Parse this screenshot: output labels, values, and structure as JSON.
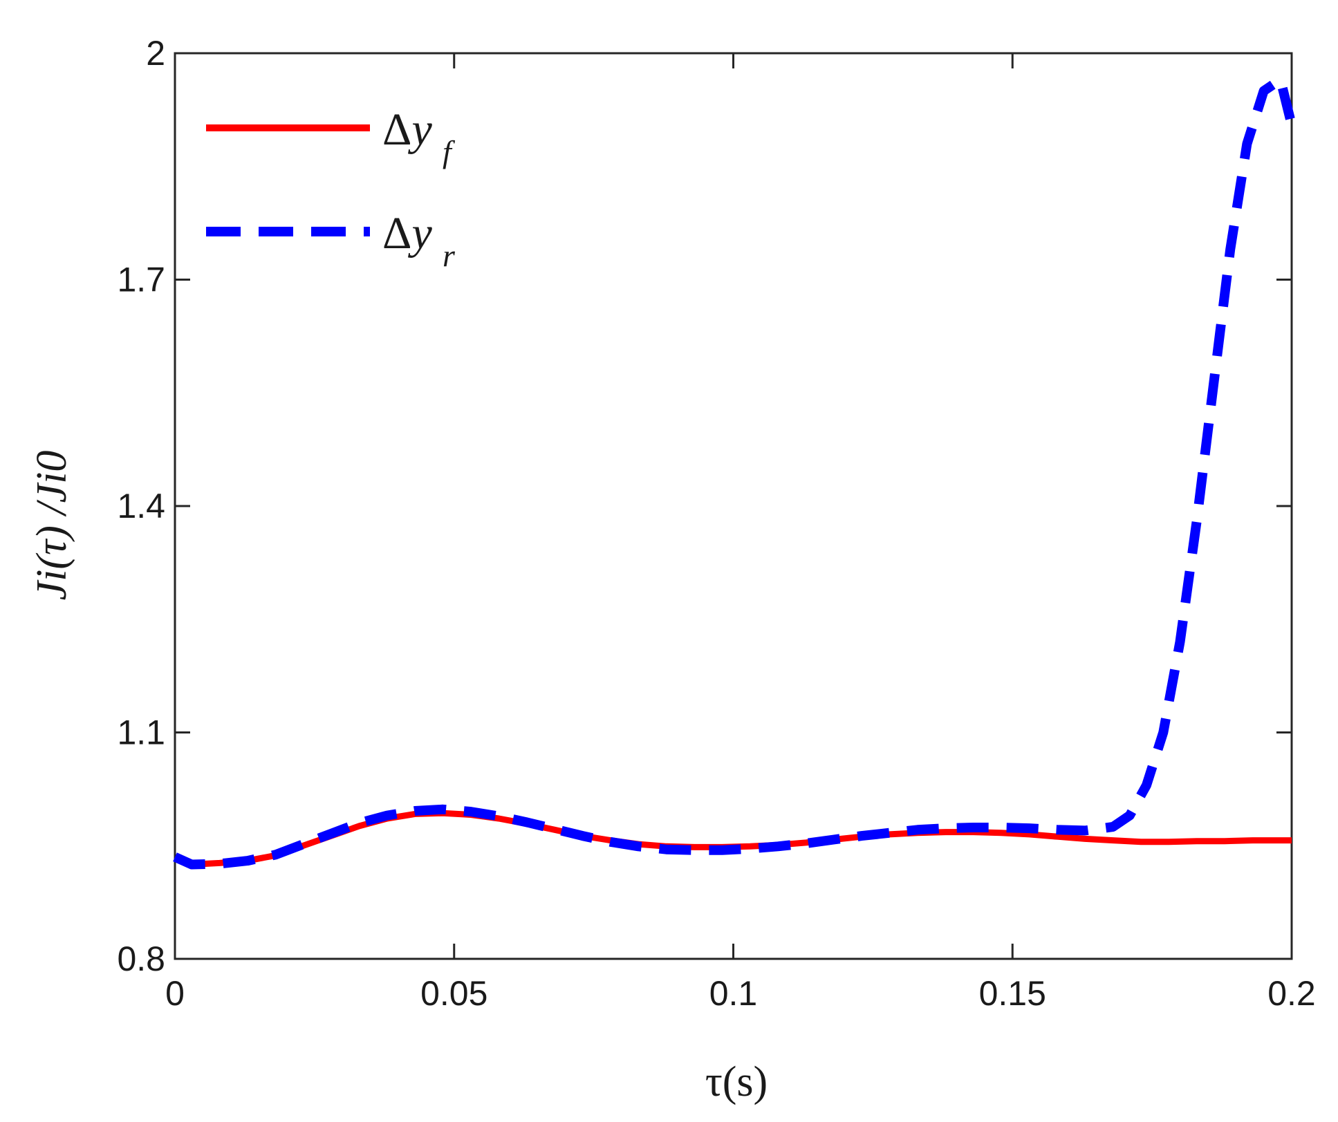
{
  "chart_data": {
    "type": "line",
    "xlabel": "τ(s)",
    "ylabel": "Ji(τ) /Ji0",
    "xlim": [
      0,
      0.2
    ],
    "ylim": [
      0.8,
      2.0
    ],
    "xticks": [
      0,
      0.05,
      0.1,
      0.15,
      0.2
    ],
    "xtick_labels": [
      "0",
      "0.05",
      "0.1",
      "0.15",
      "0.2"
    ],
    "yticks": [
      0.8,
      1.1,
      1.4,
      1.7,
      2.0
    ],
    "ytick_labels": [
      "0.8",
      "1.1",
      "1.4",
      "1.7",
      "2"
    ],
    "grid": false,
    "legend_position": "top-left",
    "series": [
      {
        "name": "Δyf",
        "label_main": "Δy",
        "label_sub": "f",
        "color": "#ff0000",
        "style": "solid",
        "x": [
          0,
          0.003,
          0.008,
          0.013,
          0.018,
          0.023,
          0.028,
          0.033,
          0.038,
          0.043,
          0.048,
          0.053,
          0.058,
          0.063,
          0.068,
          0.073,
          0.078,
          0.083,
          0.088,
          0.093,
          0.098,
          0.103,
          0.108,
          0.113,
          0.118,
          0.123,
          0.128,
          0.133,
          0.138,
          0.143,
          0.148,
          0.153,
          0.158,
          0.163,
          0.168,
          0.173,
          0.178,
          0.183,
          0.188,
          0.193,
          0.2
        ],
        "y": [
          0.933,
          0.925,
          0.927,
          0.93,
          0.937,
          0.95,
          0.963,
          0.976,
          0.986,
          0.992,
          0.993,
          0.991,
          0.986,
          0.979,
          0.971,
          0.963,
          0.957,
          0.952,
          0.949,
          0.948,
          0.948,
          0.949,
          0.951,
          0.954,
          0.958,
          0.962,
          0.965,
          0.967,
          0.968,
          0.968,
          0.967,
          0.965,
          0.962,
          0.959,
          0.957,
          0.955,
          0.955,
          0.956,
          0.956,
          0.957,
          0.957
        ]
      },
      {
        "name": "Δyr",
        "label_main": "Δy",
        "label_sub": "r",
        "color": "#0000ff",
        "style": "dashed",
        "x": [
          0,
          0.003,
          0.008,
          0.013,
          0.018,
          0.023,
          0.028,
          0.033,
          0.038,
          0.043,
          0.048,
          0.053,
          0.058,
          0.063,
          0.068,
          0.073,
          0.078,
          0.083,
          0.088,
          0.093,
          0.098,
          0.103,
          0.108,
          0.113,
          0.118,
          0.123,
          0.128,
          0.133,
          0.138,
          0.143,
          0.148,
          0.153,
          0.158,
          0.163,
          0.168,
          0.171,
          0.174,
          0.177,
          0.18,
          0.183,
          0.186,
          0.189,
          0.192,
          0.195,
          0.198,
          0.2
        ],
        "y": [
          0.935,
          0.925,
          0.926,
          0.93,
          0.938,
          0.952,
          0.966,
          0.98,
          0.99,
          0.996,
          0.998,
          0.995,
          0.989,
          0.981,
          0.972,
          0.963,
          0.955,
          0.949,
          0.945,
          0.944,
          0.944,
          0.946,
          0.949,
          0.953,
          0.958,
          0.963,
          0.967,
          0.971,
          0.973,
          0.974,
          0.974,
          0.973,
          0.971,
          0.97,
          0.975,
          0.99,
          1.03,
          1.1,
          1.22,
          1.38,
          1.56,
          1.74,
          1.88,
          1.95,
          1.965,
          1.905
        ]
      }
    ]
  }
}
